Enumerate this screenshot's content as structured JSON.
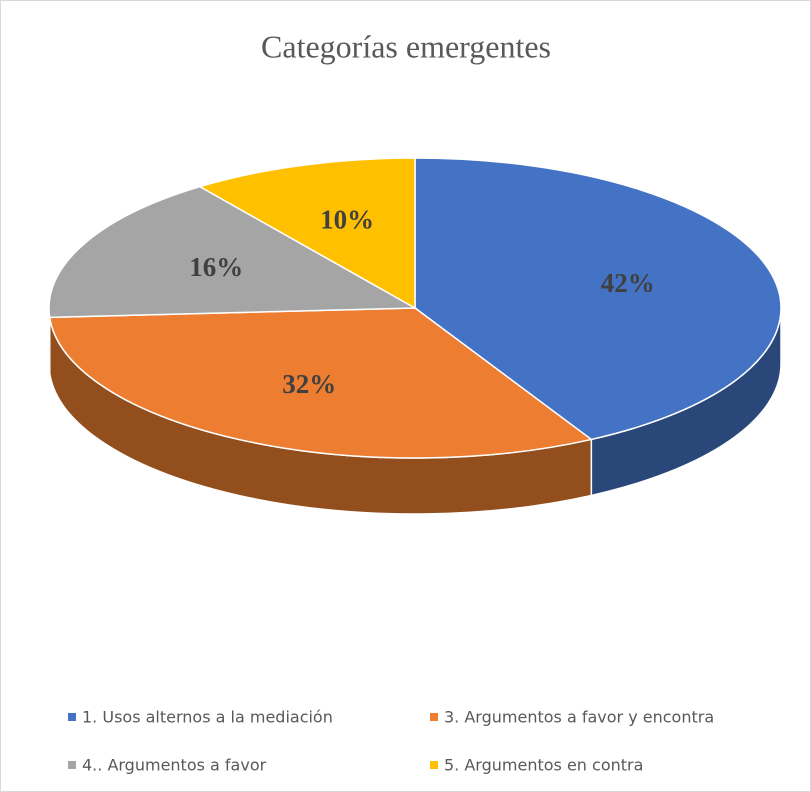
{
  "chart_data": {
    "type": "pie",
    "title": "Categorías emergentes",
    "categories": [
      "1. Usos alternos a la mediación",
      "3. Argumentos a favor y encontra",
      "4.. Argumentos a favor",
      "5. Argumentos en contra"
    ],
    "values": [
      42,
      32,
      16,
      10
    ],
    "value_labels": [
      "42%",
      "32%",
      "16%",
      "10%"
    ],
    "colors": [
      "#4472c4",
      "#ed7d31",
      "#a5a5a5",
      "#ffc000"
    ],
    "legend": "bottom"
  }
}
